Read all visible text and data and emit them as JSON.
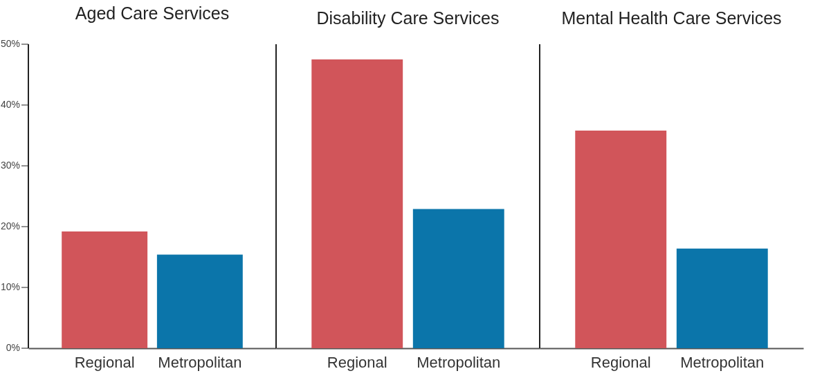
{
  "chart_data": [
    {
      "type": "bar",
      "title": "Aged Care Services",
      "categories": [
        "Regional",
        "Metropolitan"
      ],
      "values": [
        19.2,
        15.4
      ],
      "colors": [
        "#d1555a",
        "#0b75aa"
      ],
      "ylim": [
        0,
        50
      ],
      "yticks": [
        {
          "value": 0,
          "label": "0%"
        },
        {
          "value": 10,
          "label": "10%"
        },
        {
          "value": 20,
          "label": "20%"
        },
        {
          "value": 30,
          "label": "30%"
        },
        {
          "value": 40,
          "label": "40%"
        },
        {
          "value": 50,
          "label": "50%"
        }
      ]
    },
    {
      "type": "bar",
      "title": "Disability Care Services",
      "categories": [
        "Regional",
        "Metropolitan"
      ],
      "values": [
        47.5,
        22.9
      ],
      "colors": [
        "#d1555a",
        "#0b75aa"
      ],
      "ylim": [
        0,
        50
      ],
      "tick_labels": "x"
    },
    {
      "type": "bar",
      "title": "Mental Health Care Services",
      "categories": [
        "Regional",
        "Metropolitan"
      ],
      "values": [
        35.8,
        16.4
      ],
      "colors": [
        "#d1555a",
        "#0b75aa"
      ],
      "ylim": [
        0,
        50
      ],
      "tick_labels": "x"
    }
  ]
}
